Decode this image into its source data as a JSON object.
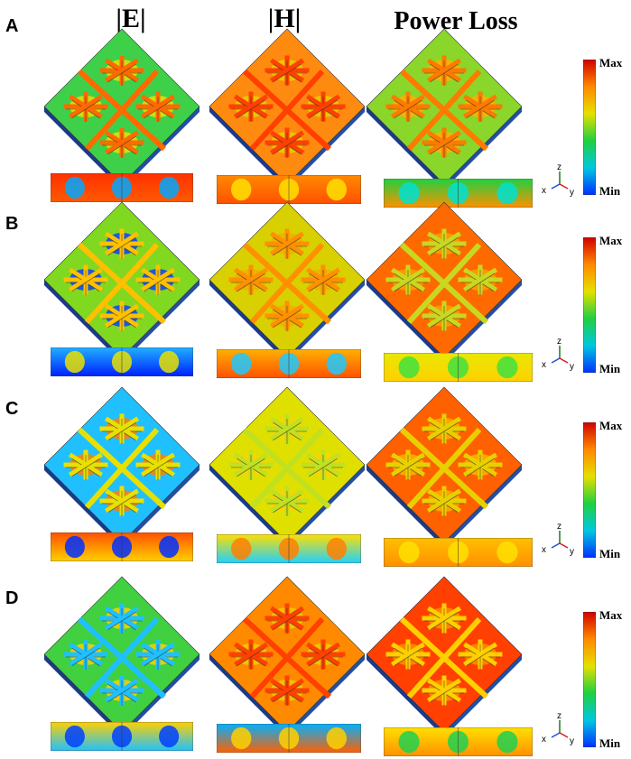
{
  "columns": [
    "|E|",
    "|H|",
    "Power Loss"
  ],
  "rows": [
    {
      "label": "A",
      "top": 0
    },
    {
      "label": "B",
      "top": 200
    },
    {
      "label": "C",
      "top": 400
    },
    {
      "label": "D",
      "top": 600
    }
  ],
  "colorbar": {
    "max_label": "Max",
    "min_label": "Min",
    "colors": [
      "#d00000",
      "#ff8800",
      "#e6e000",
      "#20d040",
      "#00c8e0",
      "#0030ff"
    ]
  },
  "axes": {
    "x": "x",
    "y": "y",
    "z": "z"
  }
}
